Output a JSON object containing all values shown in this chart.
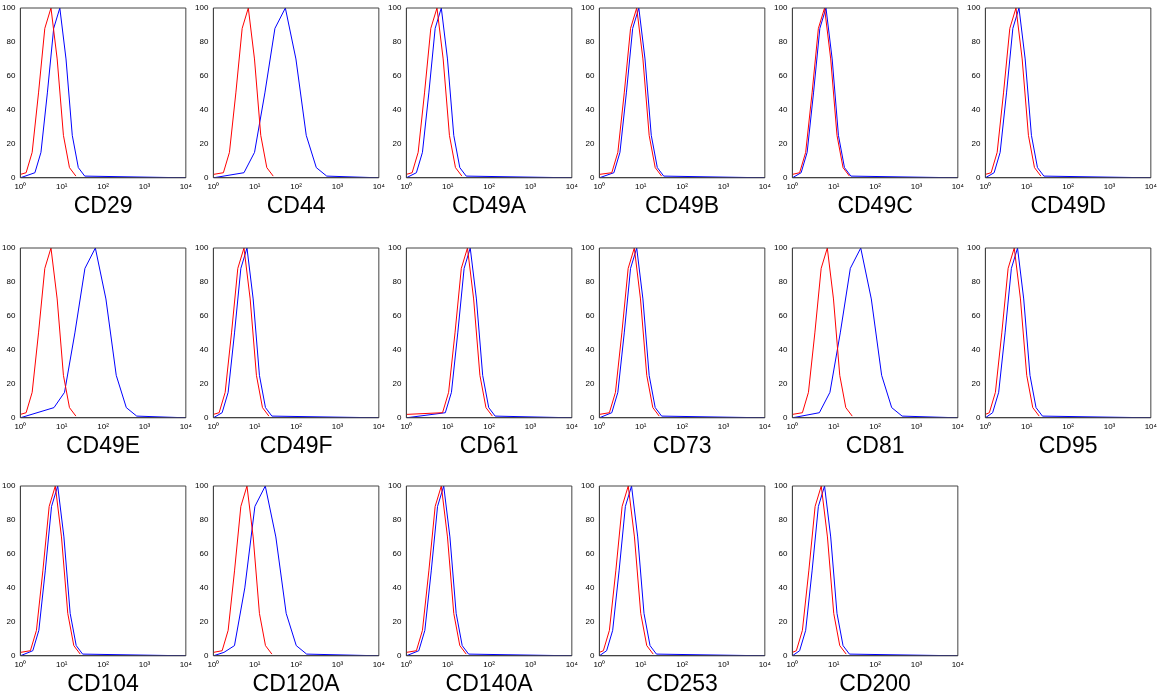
{
  "chart_data": [
    {
      "type": "line",
      "xlabel": "CD29",
      "log": "x",
      "grid": false,
      "legend": false,
      "marker": "none",
      "line_style": "solid",
      "xlim": [
        1,
        10000
      ],
      "ylim": [
        0,
        100
      ],
      "xticks": [
        {
          "value": 1,
          "label": "10⁰"
        },
        {
          "value": 10,
          "label": "10¹"
        },
        {
          "value": 100,
          "label": "10²"
        },
        {
          "value": 1000,
          "label": "10³"
        },
        {
          "value": 10000,
          "label": "10⁴"
        }
      ],
      "yticks": [
        0,
        20,
        40,
        60,
        80,
        100
      ],
      "series": [
        {
          "color": "#ff0000",
          "x": [
            1,
            1.38,
            1.93,
            2.75,
            3.9,
            5.5,
            7.76,
            11,
            15.4,
            22
          ],
          "values": [
            2,
            3,
            15,
            50,
            88,
            100,
            70,
            25,
            6,
            1
          ]
        },
        {
          "color": "#0000ff",
          "x": [
            1,
            2.25,
            3.15,
            4.5,
            6.39,
            9,
            12.7,
            18,
            25.2,
            36,
            10000
          ],
          "values": [
            0,
            3,
            15,
            50,
            88,
            100,
            70,
            25,
            6,
            1,
            0
          ]
        }
      ]
    },
    {
      "type": "line",
      "xlabel": "CD44",
      "log": "x",
      "grid": false,
      "legend": false,
      "marker": "none",
      "line_style": "solid",
      "xlim": [
        1,
        10000
      ],
      "ylim": [
        0,
        100
      ],
      "xticks": [
        {
          "value": 1,
          "label": "10⁰"
        },
        {
          "value": 10,
          "label": "10¹"
        },
        {
          "value": 100,
          "label": "10²"
        },
        {
          "value": 1000,
          "label": "10³"
        },
        {
          "value": 10000,
          "label": "10⁴"
        }
      ],
      "yticks": [
        0,
        20,
        40,
        60,
        80,
        100
      ],
      "series": [
        {
          "color": "#ff0000",
          "x": [
            1,
            1.75,
            2.45,
            3.5,
            4.97,
            7,
            9.87,
            14,
            19.6,
            28
          ],
          "values": [
            2,
            3,
            15,
            50,
            88,
            100,
            70,
            25,
            6,
            1
          ]
        },
        {
          "color": "#0000ff",
          "x": [
            1,
            5.5,
            9.9,
            17.6,
            30.8,
            55,
            99,
            176,
            308,
            550,
            10000
          ],
          "values": [
            0,
            3,
            15,
            50,
            88,
            100,
            70,
            25,
            6,
            1,
            0
          ]
        }
      ]
    },
    {
      "type": "line",
      "xlabel": "CD49A",
      "log": "x",
      "grid": false,
      "legend": false,
      "marker": "none",
      "line_style": "solid",
      "xlim": [
        1,
        10000
      ],
      "ylim": [
        0,
        100
      ],
      "xticks": [
        {
          "value": 1,
          "label": "10⁰"
        },
        {
          "value": 10,
          "label": "10¹"
        },
        {
          "value": 100,
          "label": "10²"
        },
        {
          "value": 1000,
          "label": "10³"
        },
        {
          "value": 10000,
          "label": "10⁴"
        }
      ],
      "yticks": [
        0,
        20,
        40,
        60,
        80,
        100
      ],
      "series": [
        {
          "color": "#ff0000",
          "x": [
            1,
            1.38,
            1.93,
            2.75,
            3.9,
            5.5,
            7.76,
            11,
            15.4,
            22
          ],
          "values": [
            2,
            3,
            15,
            50,
            88,
            100,
            70,
            25,
            6,
            1
          ]
        },
        {
          "color": "#0000ff",
          "x": [
            1,
            1.75,
            2.45,
            3.5,
            4.97,
            7,
            9.87,
            14,
            19.6,
            28,
            10000
          ],
          "values": [
            0,
            3,
            15,
            50,
            88,
            100,
            70,
            25,
            6,
            1,
            0
          ]
        }
      ]
    },
    {
      "type": "line",
      "xlabel": "CD49B",
      "log": "x",
      "grid": false,
      "legend": false,
      "marker": "none",
      "line_style": "solid",
      "xlim": [
        1,
        10000
      ],
      "ylim": [
        0,
        100
      ],
      "xticks": [
        {
          "value": 1,
          "label": "10⁰"
        },
        {
          "value": 10,
          "label": "10¹"
        },
        {
          "value": 100,
          "label": "10²"
        },
        {
          "value": 1000,
          "label": "10³"
        },
        {
          "value": 10000,
          "label": "10⁴"
        }
      ],
      "yticks": [
        0,
        20,
        40,
        60,
        80,
        100
      ],
      "series": [
        {
          "color": "#ff0000",
          "x": [
            1,
            2,
            2.8,
            4,
            5.68,
            8,
            11.3,
            16,
            22.4,
            32
          ],
          "values": [
            2,
            3,
            15,
            50,
            88,
            100,
            70,
            25,
            6,
            1
          ]
        },
        {
          "color": "#0000ff",
          "x": [
            1,
            2.25,
            3.15,
            4.5,
            6.39,
            9,
            12.7,
            18,
            25.2,
            36,
            10000
          ],
          "values": [
            0,
            3,
            15,
            50,
            88,
            100,
            70,
            25,
            6,
            1,
            0
          ]
        }
      ]
    },
    {
      "type": "line",
      "xlabel": "CD49C",
      "log": "x",
      "grid": false,
      "legend": false,
      "marker": "none",
      "line_style": "solid",
      "xlim": [
        1,
        10000
      ],
      "ylim": [
        0,
        100
      ],
      "xticks": [
        {
          "value": 1,
          "label": "10⁰"
        },
        {
          "value": 10,
          "label": "10¹"
        },
        {
          "value": 100,
          "label": "10²"
        },
        {
          "value": 1000,
          "label": "10³"
        },
        {
          "value": 10000,
          "label": "10⁴"
        }
      ],
      "yticks": [
        0,
        20,
        40,
        60,
        80,
        100
      ],
      "series": [
        {
          "color": "#ff0000",
          "x": [
            1,
            1.5,
            2.1,
            3,
            4.26,
            6,
            8.46,
            12,
            16.8,
            24
          ],
          "values": [
            2,
            3,
            15,
            50,
            88,
            100,
            70,
            25,
            6,
            1
          ]
        },
        {
          "color": "#0000ff",
          "x": [
            1,
            1.63,
            2.28,
            3.25,
            4.62,
            6.5,
            9.17,
            13,
            18.2,
            26,
            10000
          ],
          "values": [
            0,
            3,
            15,
            50,
            88,
            100,
            70,
            25,
            6,
            1,
            0
          ]
        }
      ]
    },
    {
      "type": "line",
      "xlabel": "CD49D",
      "log": "x",
      "grid": false,
      "legend": false,
      "marker": "none",
      "line_style": "solid",
      "xlim": [
        1,
        10000
      ],
      "ylim": [
        0,
        100
      ],
      "xticks": [
        {
          "value": 1,
          "label": "10⁰"
        },
        {
          "value": 10,
          "label": "10¹"
        },
        {
          "value": 100,
          "label": "10²"
        },
        {
          "value": 1000,
          "label": "10³"
        },
        {
          "value": 10000,
          "label": "10⁴"
        }
      ],
      "yticks": [
        0,
        20,
        40,
        60,
        80,
        100
      ],
      "series": [
        {
          "color": "#ff0000",
          "x": [
            1,
            1.38,
            1.93,
            2.75,
            3.9,
            5.5,
            7.76,
            11,
            15.4,
            22
          ],
          "values": [
            2,
            3,
            15,
            50,
            88,
            100,
            70,
            25,
            6,
            1
          ]
        },
        {
          "color": "#0000ff",
          "x": [
            1,
            1.63,
            2.28,
            3.25,
            4.62,
            6.5,
            9.17,
            13,
            18.2,
            26,
            10000
          ],
          "values": [
            0,
            3,
            15,
            50,
            88,
            100,
            70,
            25,
            6,
            1,
            0
          ]
        }
      ]
    },
    {
      "type": "line",
      "xlabel": "CD49E",
      "log": "x",
      "grid": false,
      "legend": false,
      "marker": "none",
      "line_style": "solid",
      "xlim": [
        1,
        10000
      ],
      "ylim": [
        0,
        100
      ],
      "xticks": [
        {
          "value": 1,
          "label": "10⁰"
        },
        {
          "value": 10,
          "label": "10¹"
        },
        {
          "value": 100,
          "label": "10²"
        },
        {
          "value": 1000,
          "label": "10³"
        },
        {
          "value": 10000,
          "label": "10⁴"
        }
      ],
      "yticks": [
        0,
        20,
        40,
        60,
        80,
        100
      ],
      "series": [
        {
          "color": "#ff0000",
          "x": [
            1,
            1.38,
            1.93,
            2.75,
            3.9,
            5.5,
            7.76,
            11,
            15.4,
            22
          ],
          "values": [
            2,
            3,
            15,
            50,
            88,
            100,
            70,
            25,
            6,
            1
          ]
        },
        {
          "color": "#0000ff",
          "x": [
            1,
            6.5,
            11.7,
            20.8,
            36.4,
            65,
            117,
            208,
            364,
            650,
            10000
          ],
          "values": [
            0,
            6,
            15,
            50,
            88,
            100,
            70,
            25,
            6,
            1,
            0
          ]
        }
      ]
    },
    {
      "type": "line",
      "xlabel": "CD49F",
      "log": "x",
      "grid": false,
      "legend": false,
      "marker": "none",
      "line_style": "solid",
      "xlim": [
        1,
        10000
      ],
      "ylim": [
        0,
        100
      ],
      "xticks": [
        {
          "value": 1,
          "label": "10⁰"
        },
        {
          "value": 10,
          "label": "10¹"
        },
        {
          "value": 100,
          "label": "10²"
        },
        {
          "value": 1000,
          "label": "10³"
        },
        {
          "value": 10000,
          "label": "10⁴"
        }
      ],
      "yticks": [
        0,
        20,
        40,
        60,
        80,
        100
      ],
      "series": [
        {
          "color": "#ff0000",
          "x": [
            1,
            1.38,
            1.93,
            2.75,
            3.9,
            5.5,
            7.76,
            11,
            15.4,
            22
          ],
          "values": [
            2,
            3,
            15,
            50,
            88,
            100,
            70,
            25,
            6,
            1
          ]
        },
        {
          "color": "#0000ff",
          "x": [
            1,
            1.63,
            2.28,
            3.25,
            4.62,
            6.5,
            9.17,
            13,
            18.2,
            26,
            10000
          ],
          "values": [
            0,
            3,
            15,
            50,
            88,
            100,
            70,
            25,
            6,
            1,
            0
          ]
        }
      ]
    },
    {
      "type": "line",
      "xlabel": "CD61",
      "log": "x",
      "grid": false,
      "legend": false,
      "marker": "none",
      "line_style": "solid",
      "xlim": [
        1,
        10000
      ],
      "ylim": [
        0,
        100
      ],
      "xticks": [
        {
          "value": 1,
          "label": "10⁰"
        },
        {
          "value": 10,
          "label": "10¹"
        },
        {
          "value": 100,
          "label": "10²"
        },
        {
          "value": 1000,
          "label": "10³"
        },
        {
          "value": 10000,
          "label": "10⁴"
        }
      ],
      "yticks": [
        0,
        20,
        40,
        60,
        80,
        100
      ],
      "series": [
        {
          "color": "#ff0000",
          "x": [
            1,
            7.5,
            10.5,
            15,
            21.3,
            30,
            42.3,
            60,
            84,
            120
          ],
          "values": [
            2,
            3,
            15,
            50,
            88,
            100,
            70,
            25,
            6,
            1
          ]
        },
        {
          "color": "#0000ff",
          "x": [
            1,
            8.75,
            12.3,
            17.5,
            24.9,
            35,
            49.4,
            70,
            98,
            140,
            10000
          ],
          "values": [
            0,
            3,
            15,
            50,
            88,
            100,
            70,
            25,
            6,
            1,
            0
          ]
        }
      ]
    },
    {
      "type": "line",
      "xlabel": "CD73",
      "log": "x",
      "grid": false,
      "legend": false,
      "marker": "none",
      "line_style": "solid",
      "xlim": [
        1,
        10000
      ],
      "ylim": [
        0,
        100
      ],
      "xticks": [
        {
          "value": 1,
          "label": "10⁰"
        },
        {
          "value": 10,
          "label": "10¹"
        },
        {
          "value": 100,
          "label": "10²"
        },
        {
          "value": 1000,
          "label": "10³"
        },
        {
          "value": 10000,
          "label": "10⁴"
        }
      ],
      "yticks": [
        0,
        20,
        40,
        60,
        80,
        100
      ],
      "series": [
        {
          "color": "#ff0000",
          "x": [
            1,
            1.75,
            2.45,
            3.5,
            4.97,
            7,
            9.87,
            14,
            19.6,
            28
          ],
          "values": [
            2,
            3,
            15,
            50,
            88,
            100,
            70,
            25,
            6,
            1
          ]
        },
        {
          "color": "#0000ff",
          "x": [
            1,
            2,
            2.8,
            4,
            5.68,
            8,
            11.3,
            16,
            22.4,
            32,
            10000
          ],
          "values": [
            0,
            3,
            15,
            50,
            88,
            100,
            70,
            25,
            6,
            1,
            0
          ]
        }
      ]
    },
    {
      "type": "line",
      "xlabel": "CD81",
      "log": "x",
      "grid": false,
      "legend": false,
      "marker": "none",
      "line_style": "solid",
      "xlim": [
        1,
        10000
      ],
      "ylim": [
        0,
        100
      ],
      "xticks": [
        {
          "value": 1,
          "label": "10⁰"
        },
        {
          "value": 10,
          "label": "10¹"
        },
        {
          "value": 100,
          "label": "10²"
        },
        {
          "value": 1000,
          "label": "10³"
        },
        {
          "value": 10000,
          "label": "10⁴"
        }
      ],
      "yticks": [
        0,
        20,
        40,
        60,
        80,
        100
      ],
      "series": [
        {
          "color": "#ff0000",
          "x": [
            1,
            1.75,
            2.45,
            3.5,
            4.97,
            7,
            9.87,
            14,
            19.6,
            28
          ],
          "values": [
            2,
            3,
            15,
            50,
            88,
            100,
            70,
            25,
            6,
            1
          ]
        },
        {
          "color": "#0000ff",
          "x": [
            1,
            4.5,
            8.1,
            14.4,
            25.2,
            45,
            81,
            144,
            252,
            450,
            10000
          ],
          "values": [
            0,
            3,
            15,
            50,
            88,
            100,
            70,
            25,
            6,
            1,
            0
          ]
        }
      ]
    },
    {
      "type": "line",
      "xlabel": "CD95",
      "log": "x",
      "grid": false,
      "legend": false,
      "marker": "none",
      "line_style": "solid",
      "xlim": [
        1,
        10000
      ],
      "ylim": [
        0,
        100
      ],
      "xticks": [
        {
          "value": 1,
          "label": "10⁰"
        },
        {
          "value": 10,
          "label": "10¹"
        },
        {
          "value": 100,
          "label": "10²"
        },
        {
          "value": 1000,
          "label": "10³"
        },
        {
          "value": 10000,
          "label": "10⁴"
        }
      ],
      "yticks": [
        0,
        20,
        40,
        60,
        80,
        100
      ],
      "series": [
        {
          "color": "#ff0000",
          "x": [
            1,
            1.25,
            1.75,
            2.5,
            3.55,
            5,
            7.05,
            10,
            14,
            20
          ],
          "values": [
            2,
            3,
            15,
            50,
            88,
            100,
            70,
            25,
            6,
            1
          ]
        },
        {
          "color": "#0000ff",
          "x": [
            1,
            1.5,
            2.1,
            3,
            4.26,
            6,
            8.46,
            12,
            16.8,
            24,
            10000
          ],
          "values": [
            0,
            3,
            15,
            50,
            88,
            100,
            70,
            25,
            6,
            1,
            0
          ]
        }
      ]
    },
    {
      "type": "line",
      "xlabel": "CD104",
      "log": "x",
      "grid": false,
      "legend": false,
      "marker": "none",
      "line_style": "solid",
      "xlim": [
        1,
        10000
      ],
      "ylim": [
        0,
        100
      ],
      "xticks": [
        {
          "value": 1,
          "label": "10⁰"
        },
        {
          "value": 10,
          "label": "10¹"
        },
        {
          "value": 100,
          "label": "10²"
        },
        {
          "value": 1000,
          "label": "10³"
        },
        {
          "value": 10000,
          "label": "10⁴"
        }
      ],
      "yticks": [
        0,
        20,
        40,
        60,
        80,
        100
      ],
      "series": [
        {
          "color": "#ff0000",
          "x": [
            1,
            1.75,
            2.45,
            3.5,
            4.97,
            7,
            9.87,
            14,
            19.6,
            28
          ],
          "values": [
            2,
            3,
            15,
            50,
            88,
            100,
            70,
            25,
            6,
            1
          ]
        },
        {
          "color": "#0000ff",
          "x": [
            1,
            2,
            2.8,
            4,
            5.68,
            8,
            11.3,
            16,
            22.4,
            32,
            10000
          ],
          "values": [
            0,
            3,
            15,
            50,
            88,
            100,
            70,
            25,
            6,
            1,
            0
          ]
        }
      ]
    },
    {
      "type": "line",
      "xlabel": "CD120A",
      "log": "x",
      "grid": false,
      "legend": false,
      "marker": "none",
      "line_style": "solid",
      "xlim": [
        1,
        10000
      ],
      "ylim": [
        0,
        100
      ],
      "xticks": [
        {
          "value": 1,
          "label": "10⁰"
        },
        {
          "value": 10,
          "label": "10¹"
        },
        {
          "value": 100,
          "label": "10²"
        },
        {
          "value": 1000,
          "label": "10³"
        },
        {
          "value": 10000,
          "label": "10⁴"
        }
      ],
      "yticks": [
        0,
        20,
        40,
        60,
        80,
        100
      ],
      "series": [
        {
          "color": "#ff0000",
          "x": [
            1,
            1.63,
            2.28,
            3.25,
            4.62,
            6.5,
            9.17,
            13,
            18.2,
            26
          ],
          "values": [
            2,
            3,
            15,
            50,
            88,
            100,
            70,
            25,
            6,
            1
          ]
        },
        {
          "color": "#0000ff",
          "x": [
            1,
            1.8,
            3.24,
            5.76,
            10.1,
            18,
            32.4,
            57.6,
            101,
            180,
            10000
          ],
          "values": [
            0,
            2,
            6,
            40,
            88,
            100,
            70,
            25,
            6,
            1,
            0
          ]
        }
      ]
    },
    {
      "type": "line",
      "xlabel": "CD140A",
      "log": "x",
      "grid": false,
      "legend": false,
      "marker": "none",
      "line_style": "solid",
      "xlim": [
        1,
        10000
      ],
      "ylim": [
        0,
        100
      ],
      "xticks": [
        {
          "value": 1,
          "label": "10⁰"
        },
        {
          "value": 10,
          "label": "10¹"
        },
        {
          "value": 100,
          "label": "10²"
        },
        {
          "value": 1000,
          "label": "10³"
        },
        {
          "value": 10000,
          "label": "10⁴"
        }
      ],
      "yticks": [
        0,
        20,
        40,
        60,
        80,
        100
      ],
      "series": [
        {
          "color": "#ff0000",
          "x": [
            1,
            1.75,
            2.45,
            3.5,
            4.97,
            7,
            9.87,
            14,
            19.6,
            28
          ],
          "values": [
            2,
            3,
            15,
            50,
            88,
            100,
            70,
            25,
            6,
            1
          ]
        },
        {
          "color": "#0000ff",
          "x": [
            1,
            2,
            2.8,
            4,
            5.68,
            8,
            11.3,
            16,
            22.4,
            32,
            10000
          ],
          "values": [
            0,
            3,
            15,
            50,
            88,
            100,
            70,
            25,
            6,
            1,
            0
          ]
        }
      ]
    },
    {
      "type": "line",
      "xlabel": "CD253",
      "log": "x",
      "grid": false,
      "legend": false,
      "marker": "none",
      "line_style": "solid",
      "xlim": [
        1,
        10000
      ],
      "ylim": [
        0,
        100
      ],
      "xticks": [
        {
          "value": 1,
          "label": "10⁰"
        },
        {
          "value": 10,
          "label": "10¹"
        },
        {
          "value": 100,
          "label": "10²"
        },
        {
          "value": 1000,
          "label": "10³"
        },
        {
          "value": 10000,
          "label": "10⁴"
        }
      ],
      "yticks": [
        0,
        20,
        40,
        60,
        80,
        100
      ],
      "series": [
        {
          "color": "#ff0000",
          "x": [
            1,
            1.25,
            1.75,
            2.5,
            3.55,
            5,
            7.05,
            10,
            14,
            20
          ],
          "values": [
            2,
            3,
            15,
            50,
            88,
            100,
            70,
            25,
            6,
            1
          ]
        },
        {
          "color": "#0000ff",
          "x": [
            1,
            1.5,
            2.1,
            3,
            4.26,
            6,
            8.46,
            12,
            16.8,
            24,
            10000
          ],
          "values": [
            0,
            3,
            15,
            50,
            88,
            100,
            70,
            25,
            6,
            1,
            0
          ]
        }
      ]
    },
    {
      "type": "line",
      "xlabel": "CD200",
      "log": "x",
      "grid": false,
      "legend": false,
      "marker": "none",
      "line_style": "solid",
      "xlim": [
        1,
        10000
      ],
      "ylim": [
        0,
        100
      ],
      "xticks": [
        {
          "value": 1,
          "label": "10⁰"
        },
        {
          "value": 10,
          "label": "10¹"
        },
        {
          "value": 100,
          "label": "10²"
        },
        {
          "value": 1000,
          "label": "10³"
        },
        {
          "value": 10000,
          "label": "10⁴"
        }
      ],
      "yticks": [
        0,
        20,
        40,
        60,
        80,
        100
      ],
      "series": [
        {
          "color": "#ff0000",
          "x": [
            1,
            1.25,
            1.75,
            2.5,
            3.55,
            5,
            7.05,
            10,
            14,
            20
          ],
          "values": [
            2,
            3,
            15,
            50,
            88,
            100,
            70,
            25,
            6,
            1
          ]
        },
        {
          "color": "#0000ff",
          "x": [
            1,
            1.5,
            2.1,
            3,
            4.26,
            6,
            8.46,
            12,
            16.8,
            24,
            10000
          ],
          "values": [
            0,
            3,
            15,
            50,
            88,
            100,
            70,
            25,
            6,
            1,
            0
          ]
        }
      ]
    }
  ]
}
